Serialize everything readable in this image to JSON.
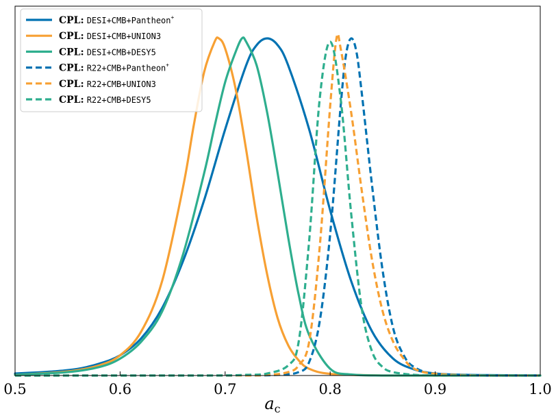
{
  "chart_data": {
    "type": "line",
    "title": "",
    "xlabel": "a",
    "xlabel_sub": "c",
    "ylabel": "",
    "xlim": [
      0.5,
      1.0
    ],
    "ylim": [
      0,
      1.0
    ],
    "x_ticks": [
      0.5,
      0.6,
      0.7,
      0.8,
      0.9,
      1.0
    ],
    "x_tick_labels": [
      "0.5",
      "0.6",
      "0.7",
      "0.8",
      "0.9",
      "1.0"
    ],
    "y_ticks_shown": false,
    "grid": false,
    "legend_position": "top-left",
    "series": [
      {
        "name": "DESI+CMB+Pantheon",
        "model": "CPL:",
        "name_superscript": "+",
        "color": "#0072B2",
        "dash": "solid",
        "x": [
          0.5,
          0.52,
          0.54,
          0.56,
          0.58,
          0.6,
          0.62,
          0.64,
          0.66,
          0.68,
          0.7,
          0.72,
          0.73,
          0.74,
          0.75,
          0.76,
          0.78,
          0.8,
          0.82,
          0.84,
          0.86,
          0.88,
          0.9,
          0.93,
          0.96,
          1.0
        ],
        "y": [
          0.006,
          0.009,
          0.013,
          0.02,
          0.035,
          0.06,
          0.11,
          0.2,
          0.34,
          0.52,
          0.73,
          0.92,
          0.98,
          1.0,
          0.98,
          0.92,
          0.73,
          0.49,
          0.28,
          0.13,
          0.05,
          0.018,
          0.006,
          0.002,
          0.001,
          0.0
        ]
      },
      {
        "name": "DESI+CMB+UNION3",
        "model": "CPL:",
        "name_superscript": "",
        "color": "#F7A033",
        "dash": "solid",
        "x": [
          0.5,
          0.55,
          0.58,
          0.6,
          0.62,
          0.64,
          0.66,
          0.67,
          0.68,
          0.69,
          0.694,
          0.7,
          0.71,
          0.72,
          0.73,
          0.74,
          0.75,
          0.76,
          0.77,
          0.78,
          0.8,
          0.85,
          0.9,
          1.0
        ],
        "y": [
          0.002,
          0.012,
          0.03,
          0.06,
          0.13,
          0.28,
          0.56,
          0.74,
          0.9,
          0.99,
          1.0,
          0.97,
          0.85,
          0.67,
          0.47,
          0.3,
          0.17,
          0.09,
          0.045,
          0.02,
          0.005,
          0.0,
          0.0,
          0.0
        ]
      },
      {
        "name": "DESI+CMB+DESY5",
        "model": "CPL:",
        "name_superscript": "",
        "color": "#2EAE8E",
        "dash": "solid",
        "x": [
          0.5,
          0.55,
          0.58,
          0.6,
          0.62,
          0.64,
          0.66,
          0.68,
          0.69,
          0.7,
          0.71,
          0.716,
          0.72,
          0.73,
          0.74,
          0.75,
          0.76,
          0.77,
          0.78,
          0.8,
          0.82,
          0.85,
          0.9,
          1.0
        ],
        "y": [
          0.002,
          0.01,
          0.025,
          0.05,
          0.1,
          0.19,
          0.36,
          0.6,
          0.74,
          0.87,
          0.96,
          1.0,
          0.99,
          0.92,
          0.78,
          0.6,
          0.41,
          0.24,
          0.12,
          0.02,
          0.003,
          0.0,
          0.0,
          0.0
        ]
      },
      {
        "name": "R22+CMB+Pantheon",
        "model": "CPL:",
        "name_superscript": "+",
        "color": "#0072B2",
        "dash": "dashed",
        "x": [
          0.5,
          0.7,
          0.75,
          0.77,
          0.78,
          0.79,
          0.8,
          0.81,
          0.815,
          0.82,
          0.825,
          0.83,
          0.84,
          0.85,
          0.86,
          0.87,
          0.88,
          0.9,
          0.95,
          1.0
        ],
        "y": [
          0.0,
          0.0,
          0.002,
          0.01,
          0.04,
          0.16,
          0.42,
          0.8,
          0.95,
          1.0,
          0.96,
          0.84,
          0.56,
          0.31,
          0.14,
          0.06,
          0.025,
          0.005,
          0.0,
          0.0
        ]
      },
      {
        "name": "R22+CMB+UNION3",
        "model": "CPL:",
        "name_superscript": "",
        "color": "#F7A033",
        "dash": "dashed",
        "x": [
          0.5,
          0.7,
          0.74,
          0.76,
          0.77,
          0.78,
          0.79,
          0.8,
          0.806,
          0.81,
          0.82,
          0.83,
          0.84,
          0.85,
          0.86,
          0.87,
          0.88,
          0.9,
          0.95,
          1.0
        ],
        "y": [
          0.0,
          0.0,
          0.002,
          0.01,
          0.03,
          0.1,
          0.38,
          0.8,
          1.0,
          0.97,
          0.78,
          0.55,
          0.34,
          0.19,
          0.1,
          0.05,
          0.02,
          0.005,
          0.0,
          0.0
        ]
      },
      {
        "name": "R22+CMB+DESY5",
        "model": "CPL:",
        "name_superscript": "",
        "color": "#2EAE8E",
        "dash": "dashed",
        "x": [
          0.5,
          0.68,
          0.72,
          0.74,
          0.76,
          0.77,
          0.78,
          0.79,
          0.8,
          0.81,
          0.82,
          0.83,
          0.84,
          0.85,
          0.86,
          0.88,
          0.9,
          0.95,
          1.0
        ],
        "y": [
          0.0,
          0.0,
          0.002,
          0.006,
          0.03,
          0.1,
          0.4,
          0.82,
          0.99,
          0.82,
          0.48,
          0.2,
          0.07,
          0.025,
          0.01,
          0.002,
          0.0,
          0.0,
          0.0
        ]
      }
    ]
  }
}
